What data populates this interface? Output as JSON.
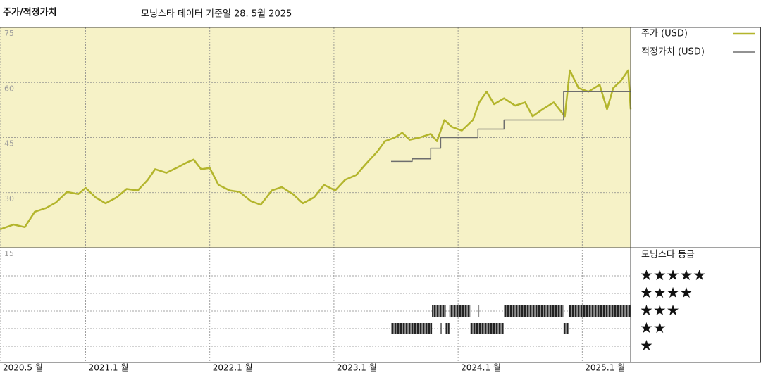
{
  "chart_data": {
    "type": "line",
    "title": "주가/적정가치",
    "subtitle": "모닝스타 데이터 기준일 28. 5월 2025",
    "x": [
      2020.31,
      2020.42,
      2020.51,
      2020.59,
      2020.68,
      2020.76,
      2020.85,
      2020.94,
      2021.0,
      2021.08,
      2021.16,
      2021.25,
      2021.33,
      2021.42,
      2021.5,
      2021.56,
      2021.65,
      2021.73,
      2021.82,
      2021.87,
      2021.93,
      2022.0,
      2022.07,
      2022.16,
      2022.24,
      2022.33,
      2022.41,
      2022.5,
      2022.58,
      2022.67,
      2022.75,
      2022.84,
      2022.92,
      2023.01,
      2023.09,
      2023.18,
      2023.26,
      2023.35,
      2023.41,
      2023.49,
      2023.55,
      2023.61,
      2023.69,
      2023.78,
      2023.83,
      2023.89,
      2023.95,
      2024.03,
      2024.12,
      2024.17,
      2024.23,
      2024.29,
      2024.37,
      2024.46,
      2024.54,
      2024.6,
      2024.68,
      2024.77,
      2024.86,
      2024.9,
      2024.97,
      2025.05,
      2025.14,
      2025.2,
      2025.25,
      2025.31,
      2025.37,
      2025.39
    ],
    "series": [
      {
        "name": "주가 (USD)",
        "color": "#b3b52c",
        "values": [
          20,
          21.3,
          20.6,
          24.8,
          25.8,
          27.3,
          30.2,
          29.6,
          31.3,
          28.7,
          27.1,
          28.7,
          31,
          30.6,
          33.5,
          36.4,
          35.4,
          36.7,
          38.3,
          39,
          36.4,
          36.7,
          32.1,
          30.6,
          30.2,
          27.7,
          26.7,
          30.6,
          31.5,
          29.6,
          27.1,
          28.7,
          32.1,
          30.6,
          33.5,
          34.8,
          37.9,
          41.2,
          44,
          45,
          46.3,
          44.4,
          45,
          46,
          44,
          49.8,
          47.9,
          46.9,
          49.8,
          54.6,
          57.5,
          54.1,
          55.7,
          53.7,
          54.6,
          50.8,
          52.7,
          54.6,
          50.8,
          63.3,
          58.5,
          57.5,
          59.4,
          52.7,
          58.5,
          60.4,
          63.3,
          52.7
        ]
      },
      {
        "name": "적정가치 (USD)",
        "color": "#6e6e6e",
        "x": [
          2023.46,
          2023.63,
          2023.63,
          2023.78,
          2023.78,
          2023.86,
          2023.86,
          2024.16,
          2024.16,
          2024.37,
          2024.37,
          2024.85,
          2024.85,
          2025.39
        ],
        "values": [
          38.5,
          38.5,
          39.2,
          39.2,
          42.1,
          42.1,
          45,
          45,
          47.3,
          47.3,
          49.8,
          49.8,
          57.5,
          57.5
        ]
      }
    ],
    "xlim": [
      2020.31,
      2025.39
    ],
    "xticks": [
      {
        "value": 2020.31,
        "label": "2020.5 월"
      },
      {
        "value": 2021.0,
        "label": "2021.1 월"
      },
      {
        "value": 2022.0,
        "label": "2022.1 월"
      },
      {
        "value": 2023.0,
        "label": "2023.1 월"
      },
      {
        "value": 2024.0,
        "label": "2024.1 월"
      },
      {
        "value": 2025.0,
        "label": "2025.1 월"
      }
    ],
    "ylim": [
      15,
      75
    ],
    "yticks": [
      15,
      30,
      45,
      60,
      75
    ],
    "grid": true,
    "legend": "right",
    "ratings": {
      "title": "모닝스타 등급",
      "levels": [
        {
          "value": 5,
          "label": "★★★★★"
        },
        {
          "value": 4,
          "label": "★★★★"
        },
        {
          "value": 3,
          "label": "★★★"
        },
        {
          "value": 2,
          "label": "★★"
        },
        {
          "value": 1,
          "label": "★"
        }
      ],
      "periods": [
        {
          "start": 2023.46,
          "end": 2023.79,
          "stars": 2
        },
        {
          "start": 2023.79,
          "end": 2023.9,
          "stars": 3
        },
        {
          "start": 2023.86,
          "end": 2023.87,
          "stars": 2
        },
        {
          "start": 2023.9,
          "end": 2023.93,
          "stars": 2
        },
        {
          "start": 2023.93,
          "end": 2024.1,
          "stars": 3
        },
        {
          "start": 2024.1,
          "end": 2024.37,
          "stars": 2
        },
        {
          "start": 2024.16,
          "end": 2024.17,
          "stars": 3
        },
        {
          "start": 2024.37,
          "end": 2024.85,
          "stars": 3
        },
        {
          "start": 2024.85,
          "end": 2024.89,
          "stars": 2
        },
        {
          "start": 2024.89,
          "end": 2025.39,
          "stars": 3
        }
      ]
    }
  }
}
